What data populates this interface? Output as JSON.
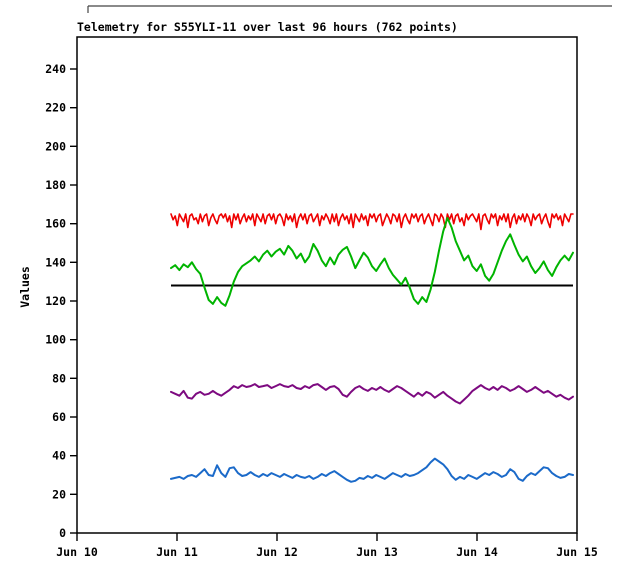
{
  "chart_data": {
    "type": "line",
    "title": "Telemetry for S55YLI-11 over last 96 hours (762 points)",
    "ylabel": "Values",
    "xlabel": "",
    "points_total": 762,
    "window_hours": 96,
    "grid": false,
    "legend": "none",
    "y_axis": {
      "min": 0,
      "max": 257,
      "tick_step": 20,
      "tick_values": [
        0,
        20,
        40,
        60,
        80,
        100,
        120,
        140,
        160,
        180,
        200,
        220,
        240
      ]
    },
    "x_axis": {
      "tick_labels": [
        "Jun 10",
        "Jun 11",
        "Jun 12",
        "Jun 13",
        "Jun 14",
        "Jun 15"
      ],
      "start_day_offset": 0.94,
      "span_days": 4.02
    },
    "series": [
      {
        "name": "threshold-line-black",
        "kind": "hline",
        "color": "#000000",
        "value": 128
      },
      {
        "name": "series-red-ceiling",
        "kind": "baseline-dips",
        "color": "#ee0000",
        "base": 165,
        "dips": [
          0,
          3,
          1,
          6,
          0,
          2,
          4,
          0,
          7,
          1,
          0,
          3,
          2,
          5,
          0,
          4,
          1,
          0,
          6,
          2,
          0,
          3,
          5,
          1,
          0,
          2,
          0,
          4,
          1,
          7,
          0,
          3,
          0,
          5,
          2,
          0,
          4,
          1,
          3,
          0,
          6,
          0,
          2,
          4,
          0,
          5,
          1,
          0,
          3,
          0,
          5,
          1,
          0,
          2,
          6,
          0,
          3,
          1,
          4,
          0,
          7,
          2,
          0,
          3,
          0,
          5,
          1,
          0,
          4,
          2,
          0,
          6,
          1,
          3,
          0,
          2,
          5,
          0,
          4,
          0,
          6,
          2,
          0,
          3,
          1,
          5,
          0,
          7,
          0,
          2,
          4,
          0,
          3,
          1,
          6,
          0,
          2,
          0,
          4,
          1,
          0,
          6,
          3,
          0,
          2,
          5,
          0,
          1,
          4,
          0,
          7,
          2,
          0,
          3,
          5,
          0,
          2,
          0,
          4,
          1,
          0,
          5,
          2,
          0,
          3,
          6,
          0,
          1,
          4,
          0,
          2,
          7,
          0,
          3,
          0,
          5,
          1,
          0,
          4,
          2,
          6,
          0,
          3,
          1,
          0,
          2,
          4,
          0,
          8,
          1,
          0,
          3,
          5,
          0,
          2,
          0,
          6,
          1,
          3,
          0,
          4,
          0,
          7,
          2,
          0,
          5,
          1,
          3,
          0,
          4,
          0,
          2,
          6,
          0,
          3,
          1,
          0,
          5,
          2,
          0,
          4,
          7,
          0,
          2,
          0,
          3,
          1,
          6,
          0,
          2,
          4,
          0,
          0
        ]
      },
      {
        "name": "series-purple",
        "kind": "line",
        "color": "#7d0a80",
        "values": [
          73,
          72,
          71,
          73.5,
          70,
          69.5,
          72,
          73,
          71.5,
          72,
          73.5,
          72,
          71,
          72.5,
          74,
          76,
          75,
          76.5,
          75.5,
          76,
          77,
          75.5,
          76,
          76.5,
          75,
          76,
          77,
          76,
          75.5,
          76.5,
          75,
          74.5,
          76,
          75,
          76.5,
          77,
          75.5,
          74,
          75.5,
          76,
          74.5,
          71.5,
          70.5,
          73,
          75,
          76,
          74.5,
          73.5,
          75,
          74,
          75.5,
          74,
          73,
          74.5,
          76,
          75,
          73.5,
          72,
          70.5,
          72.5,
          71,
          73,
          72,
          70,
          71.5,
          73,
          71,
          69.5,
          68,
          67,
          69,
          71,
          73.5,
          75,
          76.5,
          75,
          74,
          75.5,
          74,
          76,
          75,
          73.5,
          74.5,
          76,
          74.5,
          73,
          74,
          75.5,
          74,
          72.5,
          73.5,
          72,
          70.5,
          71.5,
          70,
          69,
          70.5
        ]
      },
      {
        "name": "series-blue",
        "kind": "line",
        "color": "#1b6ac9",
        "values": [
          28,
          28.5,
          29,
          28,
          29.5,
          30,
          29,
          31,
          33,
          30,
          29.5,
          35,
          31,
          29,
          33.5,
          34,
          31,
          29.5,
          30,
          31.5,
          30,
          29,
          30.5,
          29.5,
          31,
          30,
          29,
          30.5,
          29.5,
          28.5,
          30,
          29,
          28.5,
          29.5,
          28,
          29,
          30.5,
          29.5,
          31,
          32,
          30.5,
          29,
          27.5,
          26.5,
          27,
          28.5,
          28,
          29.5,
          28.5,
          30,
          29,
          28,
          29.5,
          31,
          30,
          29,
          30.5,
          29.5,
          30,
          31,
          32.5,
          34,
          36.5,
          38.5,
          37,
          35.5,
          33,
          29.5,
          27.5,
          29,
          28,
          30,
          29,
          28,
          29.5,
          31,
          30,
          31.5,
          30.5,
          29,
          30,
          33,
          31.5,
          28,
          27,
          29.5,
          31,
          30,
          32,
          34,
          33.5,
          31,
          29.5,
          28.5,
          29,
          30.5,
          30
        ]
      },
      {
        "name": "series-green",
        "kind": "line",
        "color": "#00b400",
        "values": [
          137,
          138.5,
          136,
          139,
          137.5,
          140,
          136.5,
          134,
          127,
          120.5,
          118.5,
          122,
          119,
          117.5,
          123,
          130,
          135,
          138,
          139.5,
          141,
          143,
          140.5,
          144,
          146,
          143,
          145.5,
          147,
          144,
          148.5,
          146,
          142,
          144.5,
          140,
          143,
          149.5,
          146,
          141,
          138,
          142.5,
          139,
          144,
          146.5,
          148,
          143,
          137,
          141,
          145,
          142.5,
          138,
          135.5,
          139,
          142,
          137,
          133.5,
          131,
          128.5,
          132,
          127,
          121,
          118.5,
          122,
          119.5,
          126,
          135,
          146,
          156,
          163,
          158,
          151,
          146,
          141,
          143.5,
          138,
          135.5,
          139,
          133,
          130.5,
          134,
          140,
          146,
          151,
          154.5,
          149,
          144,
          140.5,
          143,
          138,
          134.5,
          137,
          140.5,
          136,
          133,
          137.5,
          141,
          143.5,
          141,
          145
        ]
      }
    ]
  }
}
